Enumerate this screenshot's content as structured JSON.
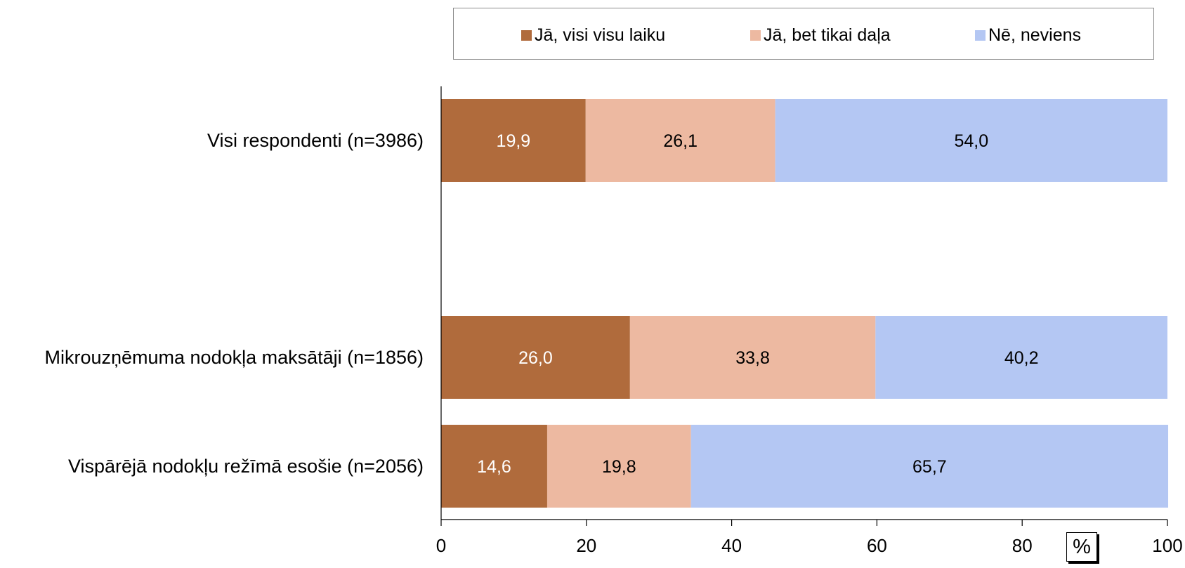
{
  "chart_data": {
    "type": "bar",
    "orientation": "horizontal",
    "stacked": true,
    "categories": [
      "Visi respondenti (n=3986)",
      "Mikrouzņēmuma nodokļa maksātāji (n=1856)",
      "Vispārējā nodokļu režīmā esošie (n=2056)"
    ],
    "series": [
      {
        "name": "Jā, visi visu laiku",
        "color": "#b06b3c",
        "label_color": "#ffffff",
        "values": [
          19.9,
          26.0,
          14.6
        ],
        "labels": [
          "19,9",
          "26,0",
          "14,6"
        ]
      },
      {
        "name": "Jā, bet tikai daļa",
        "color": "#edb9a1",
        "label_color": "#000000",
        "values": [
          26.1,
          33.8,
          19.8
        ],
        "labels": [
          "26,1",
          "33,8",
          "19,8"
        ]
      },
      {
        "name": "Nē, neviens",
        "color": "#b4c7f3",
        "label_color": "#000000",
        "values": [
          54.0,
          40.2,
          65.7
        ],
        "labels": [
          "54,0",
          "40,2",
          "65,7"
        ]
      }
    ],
    "xlim": [
      0,
      100
    ],
    "xticks": [
      0,
      20,
      40,
      60,
      80,
      100
    ],
    "xtick_labels": [
      "0",
      "20",
      "40",
      "60",
      "80",
      "100"
    ],
    "unit_label": "%",
    "legend_position": "top",
    "grid": false
  }
}
